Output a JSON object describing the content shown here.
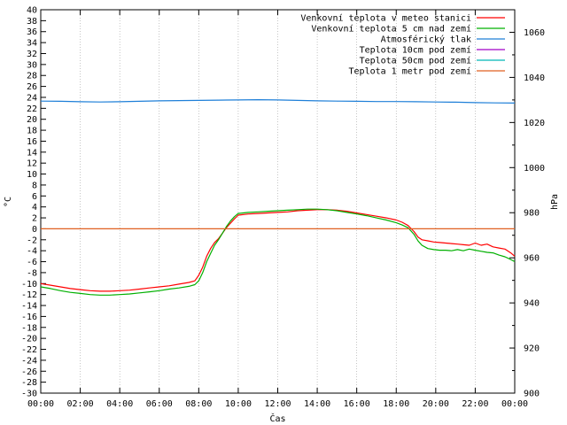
{
  "chart_data": {
    "type": "line",
    "title": "",
    "xlabel": "Čas",
    "ylabel": "°C",
    "y2label": "hPa",
    "xticks": [
      "00:00",
      "02:00",
      "04:00",
      "06:00",
      "08:00",
      "10:00",
      "12:00",
      "14:00",
      "16:00",
      "18:00",
      "20:00",
      "22:00",
      "00:00"
    ],
    "xlim": [
      0,
      24
    ],
    "ylim": [
      -30,
      40
    ],
    "ystep": 2,
    "y2lim": [
      900,
      1070
    ],
    "y2ticks": [
      900,
      920,
      940,
      960,
      980,
      1000,
      1020,
      1040,
      1060
    ],
    "legend_position": "top-right",
    "series": [
      {
        "name": "Venkovní teplota v meteo stanici",
        "axis": "y",
        "color": "#ff0000",
        "x": [
          0,
          0.5,
          1,
          1.5,
          2,
          2.5,
          3,
          3.5,
          4,
          4.5,
          5,
          5.5,
          6,
          6.5,
          7,
          7.5,
          7.8,
          8,
          8.2,
          8.4,
          8.6,
          8.8,
          9,
          9.2,
          9.4,
          9.6,
          9.8,
          10,
          10.5,
          11,
          11.5,
          12,
          12.5,
          13,
          13.5,
          14,
          14.5,
          15,
          15.5,
          16,
          16.5,
          17,
          17.5,
          18,
          18.3,
          18.6,
          18.9,
          19.1,
          19.3,
          19.6,
          19.9,
          20.2,
          20.5,
          20.8,
          21.1,
          21.4,
          21.7,
          22,
          22.3,
          22.6,
          22.9,
          23.2,
          23.5,
          23.8,
          24
        ],
        "values": [
          -10,
          -10.3,
          -10.6,
          -10.9,
          -11.1,
          -11.3,
          -11.4,
          -11.4,
          -11.3,
          -11.2,
          -11,
          -10.8,
          -10.6,
          -10.4,
          -10.1,
          -9.8,
          -9.5,
          -8.5,
          -7,
          -5,
          -3.6,
          -2.5,
          -1.8,
          -0.8,
          0.2,
          1,
          1.8,
          2.5,
          2.7,
          2.8,
          2.9,
          3,
          3.1,
          3.3,
          3.4,
          3.5,
          3.5,
          3.4,
          3.2,
          2.9,
          2.6,
          2.3,
          2,
          1.6,
          1.2,
          0.6,
          -0.5,
          -1.5,
          -2,
          -2.2,
          -2.4,
          -2.5,
          -2.6,
          -2.7,
          -2.8,
          -2.9,
          -3,
          -2.6,
          -3,
          -2.8,
          -3.3,
          -3.5,
          -3.7,
          -4.4,
          -5
        ]
      },
      {
        "name": "Venkovní teplota 5 cm nad zemí",
        "axis": "y",
        "color": "#00b000",
        "x": [
          0,
          0.5,
          1,
          1.5,
          2,
          2.5,
          3,
          3.5,
          4,
          4.5,
          5,
          5.5,
          6,
          6.5,
          7,
          7.5,
          7.8,
          8,
          8.2,
          8.4,
          8.6,
          8.8,
          9,
          9.2,
          9.4,
          9.6,
          9.8,
          10,
          10.5,
          11,
          11.5,
          12,
          12.5,
          13,
          13.5,
          14,
          14.5,
          15,
          15.5,
          16,
          16.5,
          17,
          17.5,
          18,
          18.3,
          18.6,
          18.9,
          19.1,
          19.3,
          19.6,
          19.9,
          20.2,
          20.5,
          20.8,
          21.1,
          21.4,
          21.7,
          22,
          22.3,
          22.6,
          22.9,
          23.2,
          23.5,
          23.8,
          24
        ],
        "values": [
          -10.6,
          -10.9,
          -11.3,
          -11.6,
          -11.8,
          -12,
          -12.1,
          -12.1,
          -12,
          -11.9,
          -11.7,
          -11.5,
          -11.3,
          -11,
          -10.8,
          -10.5,
          -10.2,
          -9.5,
          -8,
          -6,
          -4.5,
          -3,
          -2,
          -0.8,
          0.4,
          1.4,
          2.2,
          2.8,
          3,
          3.1,
          3.2,
          3.3,
          3.4,
          3.5,
          3.6,
          3.6,
          3.5,
          3.3,
          3,
          2.7,
          2.4,
          2,
          1.6,
          1.1,
          0.7,
          0.2,
          -1,
          -2.2,
          -3,
          -3.6,
          -3.8,
          -3.9,
          -3.9,
          -4,
          -3.8,
          -4,
          -3.7,
          -3.9,
          -4.1,
          -4.3,
          -4.4,
          -4.8,
          -5.1,
          -5.6,
          -6
        ]
      },
      {
        "name": "Atmosférický tlak",
        "axis": "y2",
        "color": "#1e7fd8",
        "x": [
          0,
          1,
          2,
          3,
          4,
          5,
          6,
          7,
          8,
          9,
          10,
          11,
          12,
          13,
          14,
          15,
          16,
          17,
          18,
          19,
          20,
          21,
          22,
          23,
          24
        ],
        "values": [
          1029.5,
          1029.4,
          1029.2,
          1029.1,
          1029.2,
          1029.4,
          1029.6,
          1029.7,
          1029.8,
          1029.9,
          1030,
          1030.1,
          1030,
          1029.8,
          1029.6,
          1029.5,
          1029.4,
          1029.3,
          1029.3,
          1029.2,
          1029.1,
          1029,
          1028.8,
          1028.7,
          1028.6
        ]
      },
      {
        "name": "Teplota 10cm pod zemí",
        "axis": "y",
        "color": "#a000c8",
        "x": [],
        "values": []
      },
      {
        "name": "Teplota 50cm pod zemí",
        "axis": "y",
        "color": "#00b8b8",
        "x": [],
        "values": []
      },
      {
        "name": "Teplota 1 metr pod zemí",
        "axis": "y",
        "color": "#e06020",
        "x": [
          0,
          24
        ],
        "values": [
          0,
          0
        ]
      }
    ]
  }
}
